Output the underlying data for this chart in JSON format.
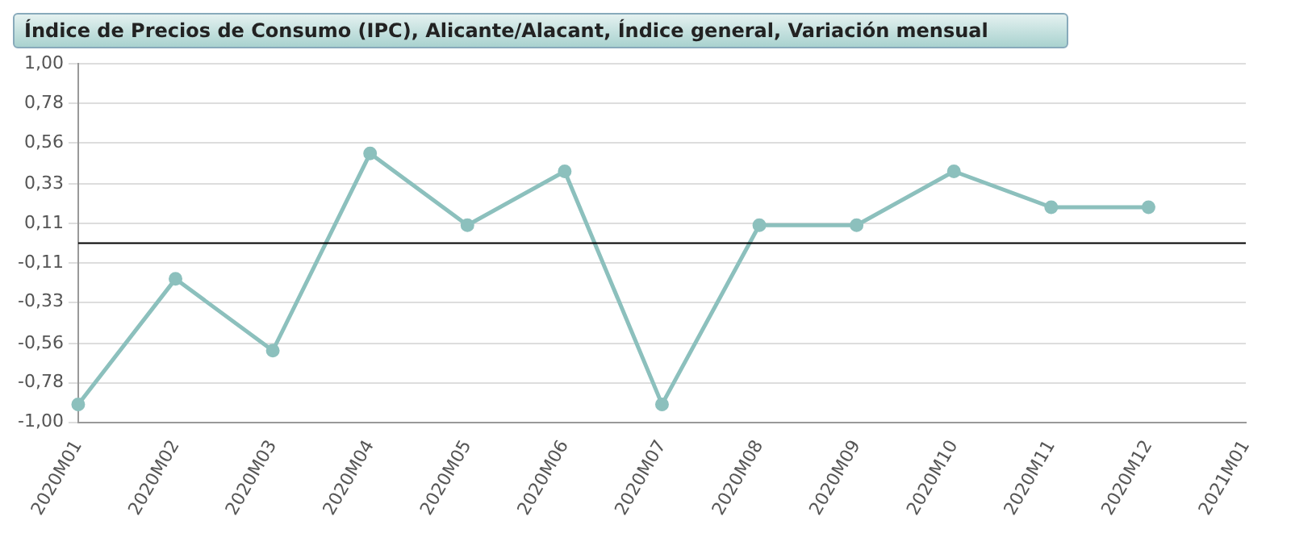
{
  "chart_data": {
    "type": "line",
    "title": "Índice de Precios de Consumo (IPC), Alicante/Alacant, Índice general, Variación mensual",
    "categories": [
      "2020M01",
      "2020M02",
      "2020M03",
      "2020M04",
      "2020M05",
      "2020M06",
      "2020M07",
      "2020M08",
      "2020M09",
      "2020M10",
      "2020M11",
      "2020M12",
      "2021M01"
    ],
    "series": [
      {
        "color": "#8cc0bd",
        "values": [
          -0.9,
          -0.2,
          -0.6,
          0.5,
          0.1,
          0.4,
          -0.9,
          0.1,
          0.1,
          0.4,
          0.2,
          0.2,
          null
        ]
      }
    ],
    "ylim": [
      -1,
      1
    ],
    "yticks": [
      {
        "value": -1,
        "label": "-1,00"
      },
      {
        "value": -0.78,
        "label": "-0,78"
      },
      {
        "value": -0.56,
        "label": "-0,56"
      },
      {
        "value": -0.33,
        "label": "-0,33"
      },
      {
        "value": -0.11,
        "label": "-0,11"
      },
      {
        "value": 0.11,
        "label": "0,11"
      },
      {
        "value": 0.33,
        "label": "0,33"
      },
      {
        "value": 0.56,
        "label": "0,56"
      },
      {
        "value": 0.78,
        "label": "0,78"
      },
      {
        "value": 1,
        "label": "1,00"
      }
    ],
    "ref_lines": [
      {
        "axis": "y",
        "value": 0,
        "color": "#000000"
      }
    ],
    "grid": "y",
    "marker": "circle",
    "line_style": "solid",
    "legend": false
  }
}
